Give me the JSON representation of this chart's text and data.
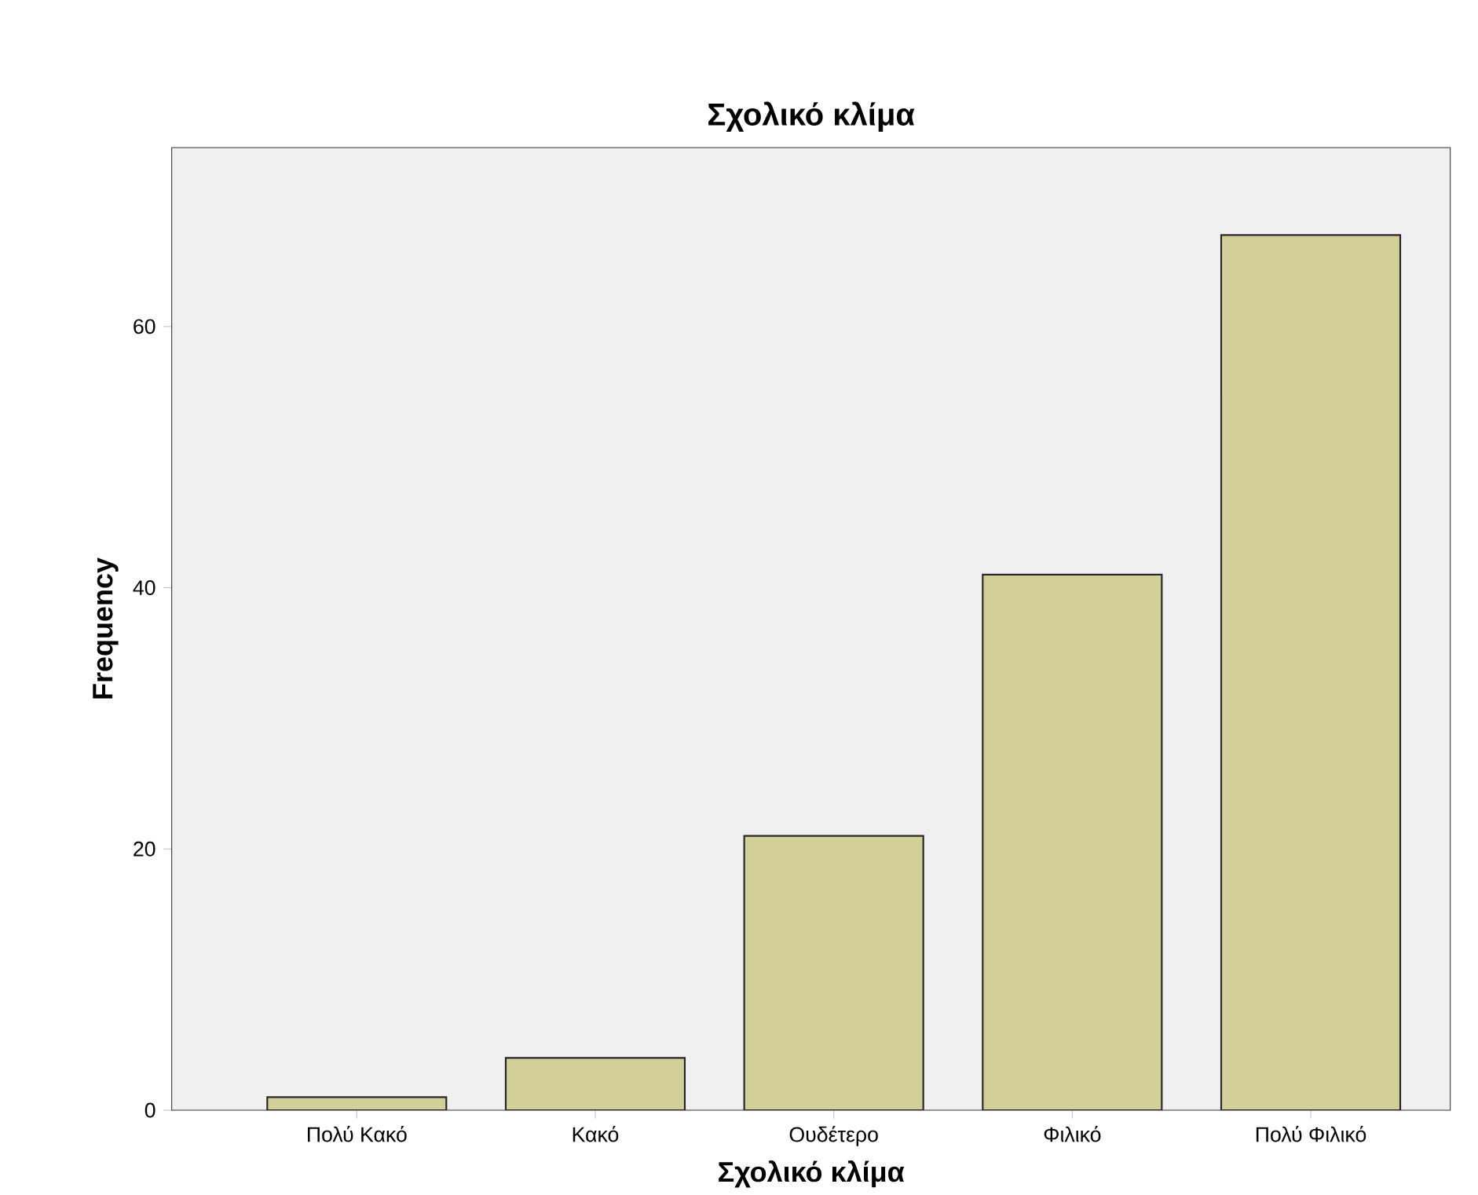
{
  "chart_data": {
    "type": "bar",
    "title": "Σχολικό κλίμα",
    "xlabel": "Σχολικό κλίμα",
    "ylabel": "Frequency",
    "categories": [
      "Πολύ Κακό",
      "Κακό",
      "Ουδέτερο",
      "Φιλικό",
      "Πολύ Φιλικό"
    ],
    "values": [
      1,
      4,
      21,
      41,
      67
    ],
    "color": "#d3cf98",
    "ylim": [
      0,
      73.7
    ],
    "yticks": [
      0,
      20,
      40,
      60
    ],
    "grid": false
  }
}
